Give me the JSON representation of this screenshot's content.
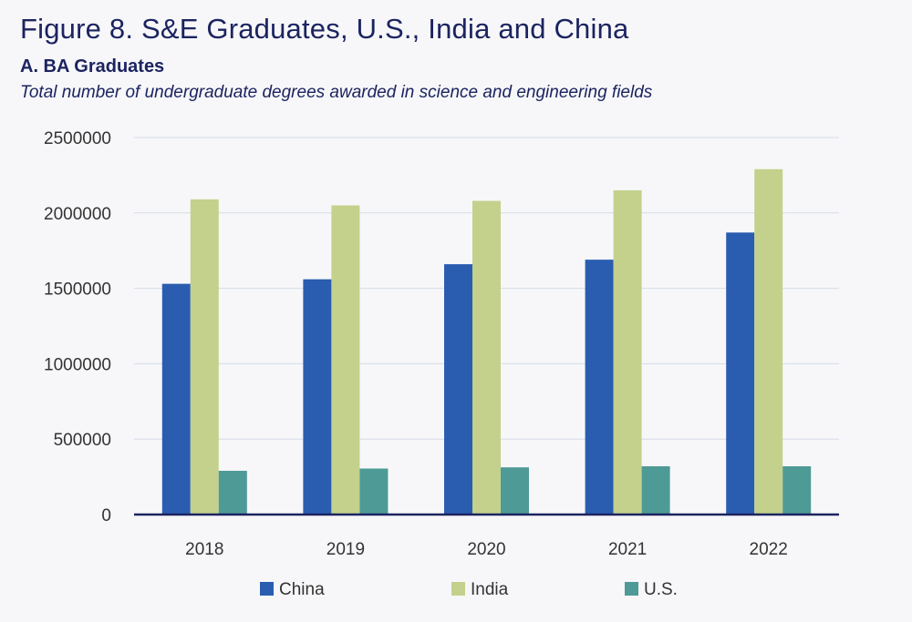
{
  "title": "Figure 8. S&E Graduates, U.S., India and China",
  "subtitle": "A. BA Graduates",
  "caption": "Total number of undergraduate degrees awarded in science and engineering fields",
  "chart_data": {
    "type": "bar",
    "categories": [
      "2018",
      "2019",
      "2020",
      "2021",
      "2022"
    ],
    "series": [
      {
        "name": "China",
        "color": "#2a5db0",
        "values": [
          1530000,
          1560000,
          1660000,
          1690000,
          1870000
        ]
      },
      {
        "name": "India",
        "color": "#c3d18c",
        "values": [
          2090000,
          2050000,
          2080000,
          2150000,
          2290000
        ]
      },
      {
        "name": "U.S.",
        "color": "#4e9a96",
        "values": [
          290000,
          305000,
          313000,
          320000,
          320000
        ]
      }
    ],
    "yticks": [
      "0",
      "500000",
      "1000000",
      "1500000",
      "2000000",
      "2500000"
    ],
    "ylim": [
      0,
      2500000
    ],
    "legend_position": "bottom",
    "grid": true
  }
}
